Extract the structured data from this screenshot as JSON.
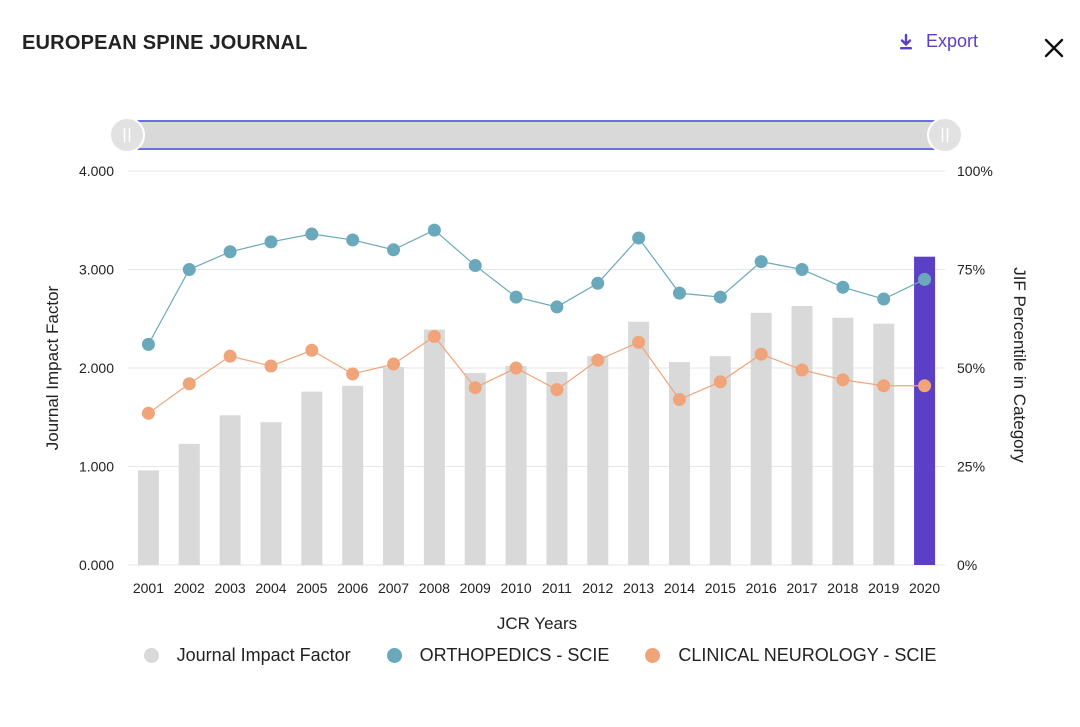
{
  "header": {
    "title": "EUROPEAN SPINE JOURNAL",
    "export_label": "Export",
    "export_icon": "download-icon",
    "close_icon": "close-icon"
  },
  "colors": {
    "bar": "#d9d9d9",
    "bar_highlight": "#5b3fc4",
    "orthopedics": "#6aa9bb",
    "neurology": "#f0a47a",
    "slider_track": "#d9d9d9",
    "slider_border": "#6b6fe0",
    "grid": "#e6e6e6"
  },
  "legend": {
    "items": [
      {
        "label": "Journal Impact Factor",
        "color": "#d9d9d9"
      },
      {
        "label": "ORTHOPEDICS - SCIE",
        "color": "#6aa9bb"
      },
      {
        "label": "CLINICAL NEUROLOGY - SCIE",
        "color": "#f0a47a"
      }
    ]
  },
  "chart_data": {
    "type": "bar",
    "xlabel": "JCR Years",
    "ylabel": "Journal Impact Factor",
    "y2label": "JIF Percentile in Category",
    "ylim": [
      0,
      4
    ],
    "y2lim": [
      0,
      100
    ],
    "yticks": [
      "0.000",
      "1.000",
      "2.000",
      "3.000",
      "4.000"
    ],
    "y2ticks": [
      "0%",
      "25%",
      "50%",
      "75%",
      "100%"
    ],
    "categories": [
      "2001",
      "2002",
      "2003",
      "2004",
      "2005",
      "2006",
      "2007",
      "2008",
      "2009",
      "2010",
      "2011",
      "2012",
      "2013",
      "2014",
      "2015",
      "2016",
      "2017",
      "2018",
      "2019",
      "2020"
    ],
    "highlight_category": "2020",
    "grid": true,
    "legend_position": "bottom",
    "series": [
      {
        "name": "Journal Impact Factor",
        "type": "bar",
        "axis": "left",
        "values": [
          0.96,
          1.23,
          1.52,
          1.45,
          1.76,
          1.82,
          2.01,
          2.39,
          1.95,
          2.02,
          1.96,
          2.12,
          2.47,
          2.06,
          2.12,
          2.56,
          2.63,
          2.51,
          2.45,
          3.13
        ]
      },
      {
        "name": "ORTHOPEDICS - SCIE",
        "type": "line",
        "axis": "right",
        "values": [
          56,
          75,
          79.5,
          82,
          84,
          82.5,
          80,
          85,
          76,
          68,
          65.5,
          71.5,
          83,
          69,
          68,
          77,
          75,
          70.5,
          67.5,
          72.5
        ]
      },
      {
        "name": "CLINICAL NEUROLOGY - SCIE",
        "type": "line",
        "axis": "right",
        "values": [
          38.5,
          46,
          53,
          50.5,
          54.5,
          48.5,
          51,
          58,
          45,
          50,
          44.5,
          52,
          56.5,
          42,
          46.5,
          53.5,
          49.5,
          47,
          45.5,
          45.5
        ]
      }
    ]
  }
}
